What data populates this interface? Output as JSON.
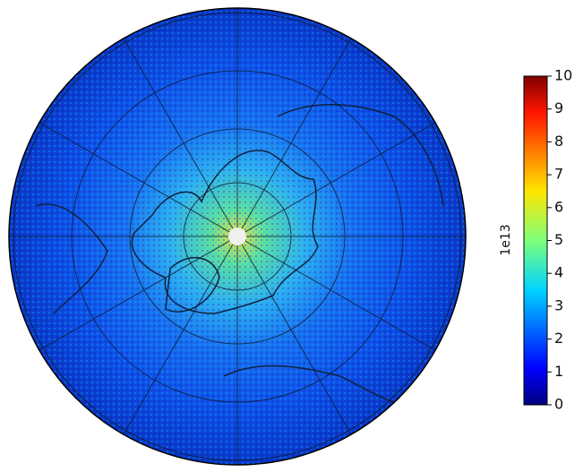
{
  "colorbar": {
    "label": "1e13",
    "lim": [
      0,
      10
    ],
    "ticks": [
      0,
      1,
      2,
      3,
      4,
      5,
      6,
      7,
      8,
      9,
      10
    ]
  }
}
